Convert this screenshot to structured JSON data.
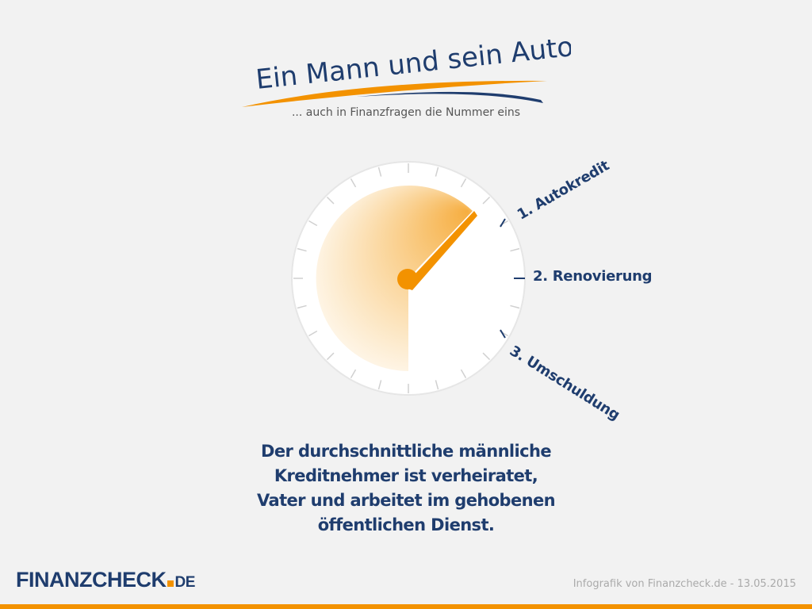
{
  "header": {
    "title": "Ein Mann und sein Auto",
    "subtitle": "... auch in Finanzfragen die Nummer eins"
  },
  "gauge": {
    "labels": [
      "1. Autokredit",
      "2. Renovierung",
      "3. Umschuldung"
    ],
    "colors": {
      "needle": "#f39200",
      "fill": "#f5a623",
      "ticks": "#1f3d6e"
    }
  },
  "statement": {
    "lines": [
      "Der durchschnittliche männliche",
      "Kreditnehmer ist verheiratet,",
      "Vater und arbeitet im gehobenen",
      "öffentlichen Dienst."
    ]
  },
  "footer": {
    "logo_main": "FINANZCHECK",
    "logo_tld": "DE",
    "credit": "Infografik von Finanzcheck.de - 13.05.2015"
  },
  "colors": {
    "accent": "#f39200",
    "brand": "#1f3d6e",
    "background": "#f2f2f2"
  }
}
